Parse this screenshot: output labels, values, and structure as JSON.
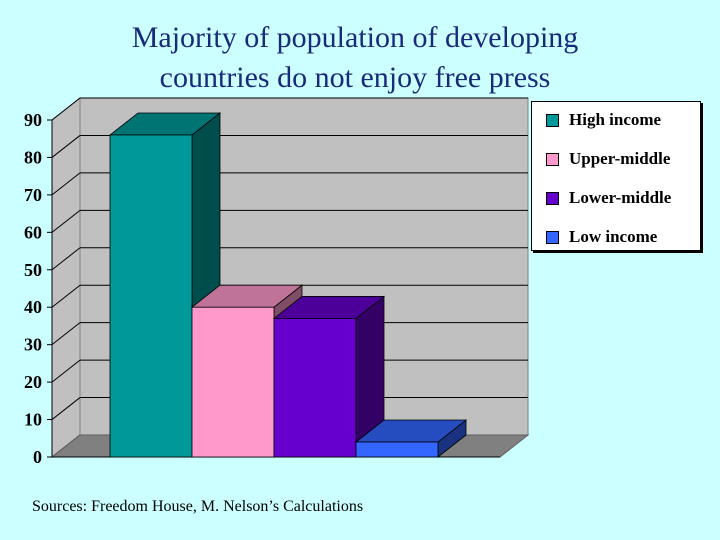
{
  "title_lines": [
    "Majority of population of developing",
    "countries do not enjoy free press"
  ],
  "source": "Sources: Freedom House, M. Nelson’s Calculations",
  "chart_data": {
    "type": "bar",
    "title": "Majority of population of developing countries do not enjoy free press",
    "xlabel": "",
    "ylabel": "",
    "ylim": [
      0,
      90
    ],
    "yticks": [
      0,
      10,
      20,
      30,
      40,
      50,
      60,
      70,
      80,
      90
    ],
    "grid": true,
    "legend_position": "top-right",
    "three_d": true,
    "series": [
      {
        "name": "High income",
        "value": 86,
        "color": "#009999"
      },
      {
        "name": "Upper-middle",
        "value": 40,
        "color": "#ff99cc"
      },
      {
        "name": "Lower-middle",
        "value": 37,
        "color": "#6600cc"
      },
      {
        "name": "Low income",
        "value": 4,
        "color": "#3366ff"
      }
    ]
  }
}
